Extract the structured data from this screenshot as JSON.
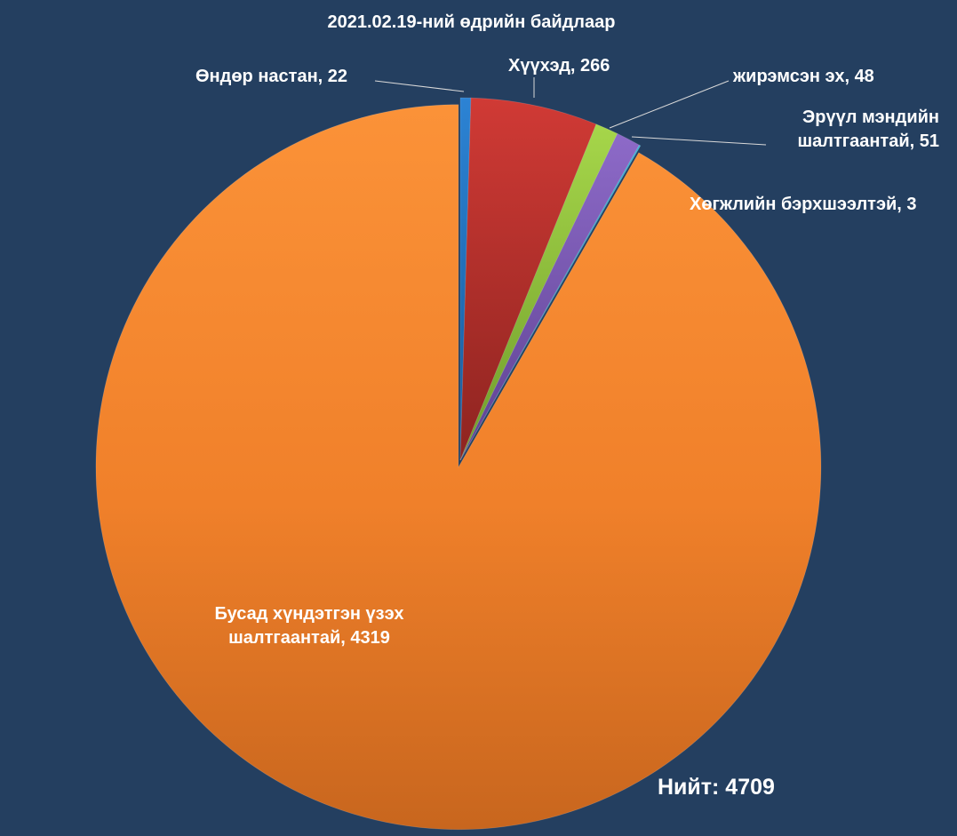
{
  "chart_data": {
    "type": "pie",
    "title": "2021.02.19-ний өдрийн байдлаар",
    "total_label": "Нийт: 4709",
    "slices": [
      {
        "label": "Өндөр настан",
        "value": 22,
        "label_text": "Өндөр настан, 22",
        "color": "#1f6fbf"
      },
      {
        "label": "Хүүхэд",
        "value": 266,
        "label_text": "Хүүхэд, 266",
        "color": "#b7302d"
      },
      {
        "label": "жирэмсэн эх",
        "value": 48,
        "label_text": "жирэмсэн эх, 48",
        "color": "#8ec43b"
      },
      {
        "label": "Эрүүл мэндийн шалтгаантай",
        "value": 51,
        "label_lines": [
          "Эрүүл мэндийн",
          "шалтгаантай, 51"
        ],
        "color": "#7a58b5"
      },
      {
        "label": "Хөгжлийн бэрхшээлтэй",
        "value": 3,
        "label_text": "Хөгжлийн бэрхшээлтэй, 3",
        "color": "#2a9fc4"
      },
      {
        "label": "Бусад хүндэтгэн үзэх шалтгаантай",
        "value": 4319,
        "label_lines": [
          "Бусад хүндэтгэн үзэх",
          "шалтгаантай, 4319"
        ],
        "color": "#f28a25"
      }
    ],
    "legend": "none"
  }
}
